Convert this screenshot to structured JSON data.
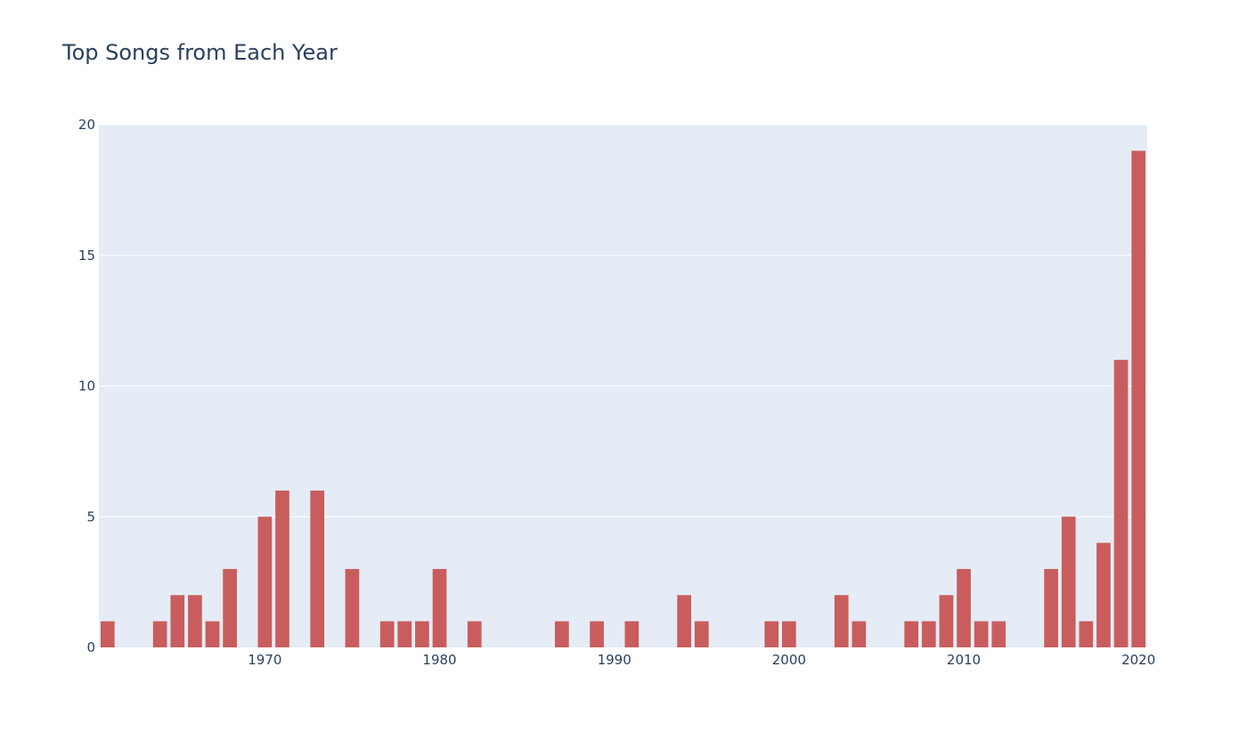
{
  "chart_data": {
    "type": "bar",
    "title": "Top Songs from Each Year",
    "xlabel": "",
    "ylabel": "",
    "x": [
      1961,
      1964,
      1965,
      1966,
      1967,
      1968,
      1970,
      1971,
      1973,
      1975,
      1977,
      1978,
      1979,
      1980,
      1982,
      1987,
      1989,
      1991,
      1994,
      1995,
      1999,
      2000,
      2003,
      2004,
      2007,
      2008,
      2009,
      2010,
      2011,
      2012,
      2015,
      2016,
      2017,
      2018,
      2019,
      2020
    ],
    "values": [
      1,
      1,
      2,
      2,
      1,
      3,
      5,
      6,
      6,
      3,
      1,
      1,
      1,
      3,
      1,
      1,
      1,
      1,
      2,
      1,
      1,
      1,
      2,
      1,
      1,
      1,
      2,
      3,
      1,
      1,
      3,
      5,
      1,
      4,
      11,
      19
    ],
    "xlim": [
      1960.5,
      2020.5
    ],
    "ylim": [
      0,
      20
    ],
    "xticks": [
      "1970",
      "1980",
      "1990",
      "2000",
      "2010",
      "2020"
    ],
    "yticks": [
      "0",
      "5",
      "10",
      "15",
      "20"
    ],
    "grid": true,
    "legend": "none",
    "colors": {
      "bar": "#c95d5d",
      "plot_bg": "#e5ecf6",
      "grid": "#ffffff",
      "text": "#2a3f5f"
    }
  }
}
